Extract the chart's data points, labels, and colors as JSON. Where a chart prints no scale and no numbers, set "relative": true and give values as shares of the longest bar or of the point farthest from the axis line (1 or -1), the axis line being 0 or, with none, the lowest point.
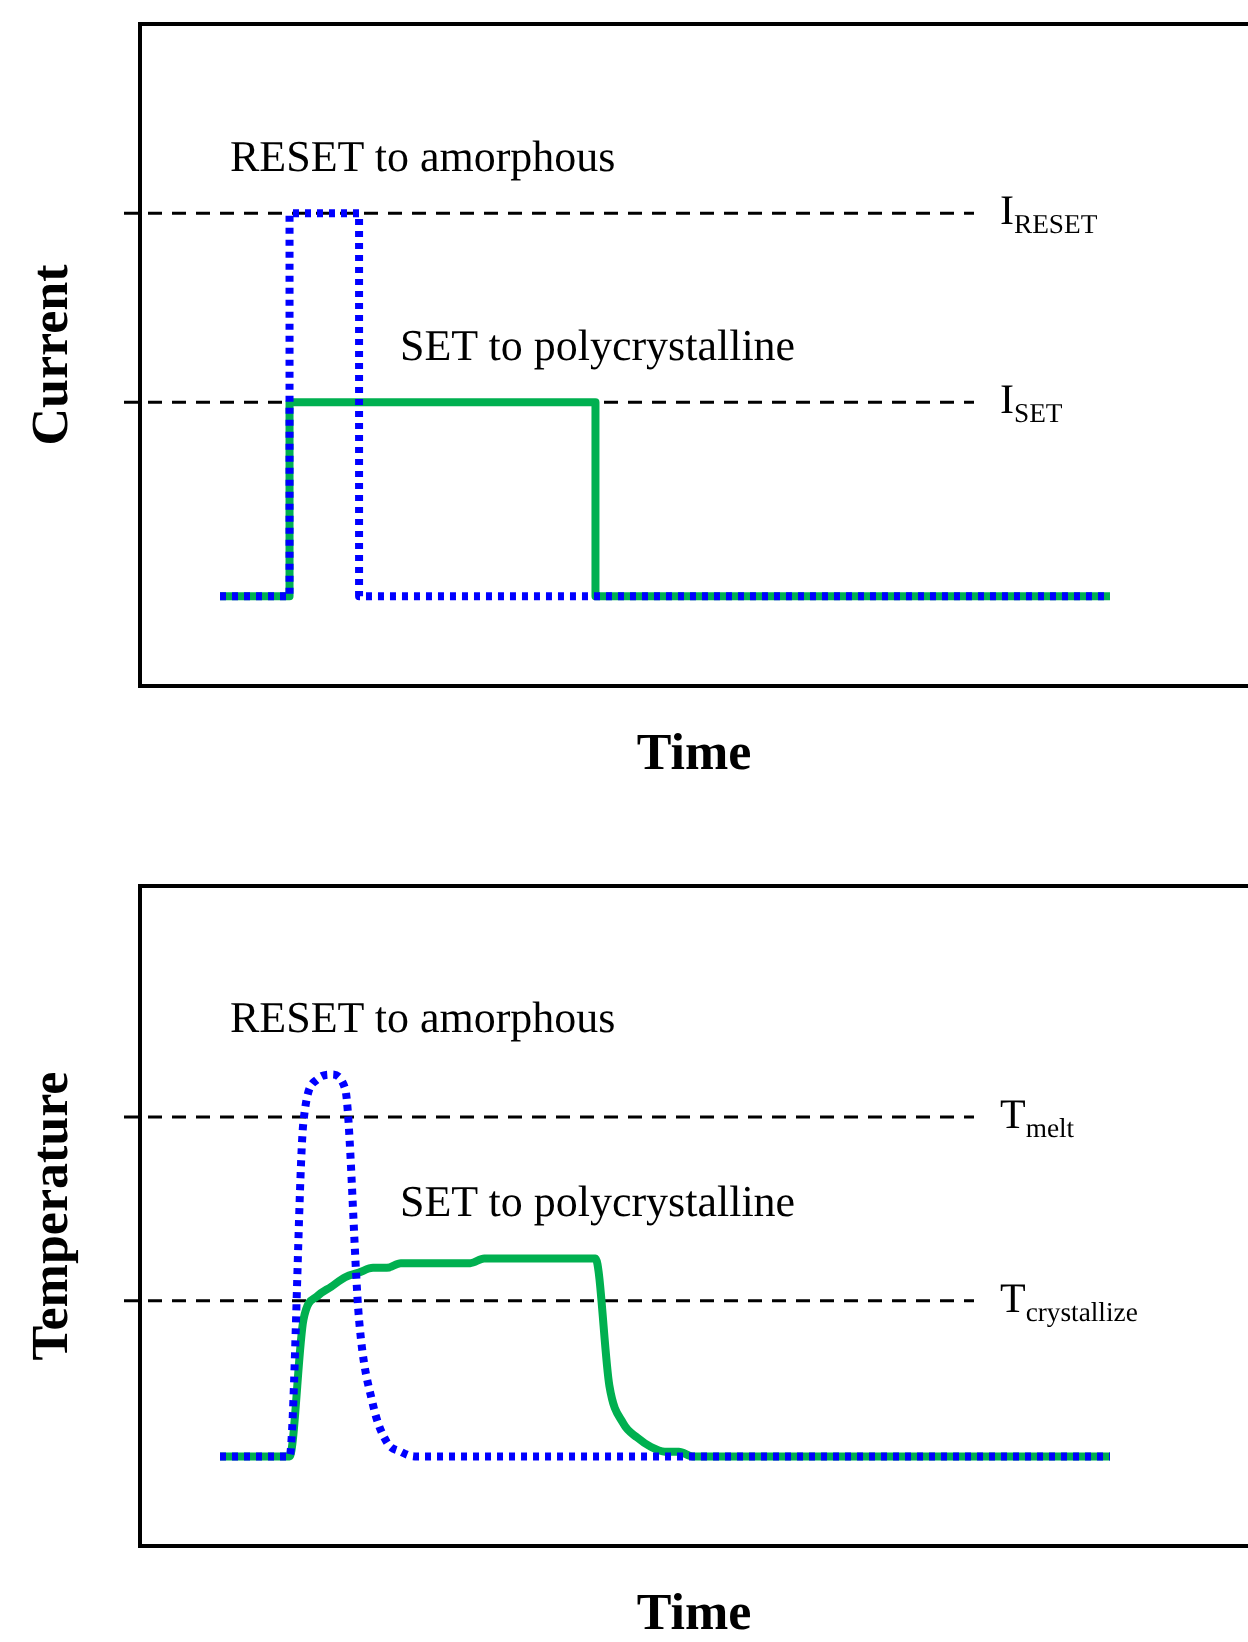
{
  "chart_data": [
    {
      "type": "step",
      "relative": true,
      "xlabel": "Time",
      "ylabel": "Current",
      "tick_labels": false,
      "categories": [
        null,
        null,
        null,
        null,
        null,
        null,
        null,
        null,
        null,
        null,
        null,
        null,
        null,
        null,
        null,
        null,
        null,
        null,
        null,
        null,
        null,
        null,
        null,
        null,
        null,
        null,
        null,
        null,
        null,
        null,
        null,
        null,
        null,
        null,
        null,
        null,
        null,
        null,
        null,
        null,
        null,
        null,
        null,
        null,
        null,
        null,
        null,
        null,
        null,
        null,
        null,
        null,
        null,
        null,
        null,
        null,
        null,
        null,
        null,
        null,
        null,
        null,
        null,
        null,
        null
      ],
      "series": [
        {
          "color": "#0000ff",
          "line_style": "dotted",
          "values": [
            0.19,
            0.19,
            0.19,
            0.19,
            0.19,
            1,
            1,
            1,
            1,
            1,
            0.19,
            0.19,
            0.19,
            0.19,
            0.19,
            0.19,
            0.19,
            0.19,
            0.19,
            0.19,
            0.19,
            0.19,
            0.19,
            0.19,
            0.19,
            0.19,
            0.19,
            0.19,
            0.19,
            0.19,
            0.19,
            0.19,
            0.19,
            0.19,
            0.19,
            0.19,
            0.19,
            0.19,
            0.19,
            0.19,
            0.19,
            0.19,
            0.19,
            0.19,
            0.19,
            0.19,
            0.19,
            0.19,
            0.19,
            0.19,
            0.19,
            0.19,
            0.19,
            0.19,
            0.19,
            0.19,
            0.19,
            0.19,
            0.19,
            0.19,
            0.19,
            0.19,
            0.19,
            0.19,
            0.19
          ]
        },
        {
          "color": "#00b050",
          "line_style": "solid",
          "values": [
            0.19,
            0.19,
            0.19,
            0.19,
            0.19,
            0.6,
            0.6,
            0.6,
            0.6,
            0.6,
            0.6,
            0.6,
            0.6,
            0.6,
            0.6,
            0.6,
            0.6,
            0.6,
            0.6,
            0.6,
            0.6,
            0.6,
            0.6,
            0.6,
            0.6,
            0.6,
            0.6,
            0.19,
            0.19,
            0.19,
            0.19,
            0.19,
            0.19,
            0.19,
            0.19,
            0.19,
            0.19,
            0.19,
            0.19,
            0.19,
            0.19,
            0.19,
            0.19,
            0.19,
            0.19,
            0.19,
            0.19,
            0.19,
            0.19,
            0.19,
            0.19,
            0.19,
            0.19,
            0.19,
            0.19,
            0.19,
            0.19,
            0.19,
            0.19,
            0.19,
            0.19,
            0.19,
            0.19,
            0.19,
            0.19
          ]
        }
      ],
      "ref_lines": [
        {
          "axis": "y",
          "value": 1,
          "label": "I$_{RESET}$",
          "color": "#000000",
          "line_style": "dashed"
        },
        {
          "axis": "y",
          "value": 0.6,
          "label": "I$_{SET}$",
          "color": "#000000",
          "line_style": "dashed"
        }
      ],
      "annotations": [
        "RESET to amorphous",
        "SET to polycrystalline"
      ]
    },
    {
      "type": "line",
      "relative": true,
      "xlabel": "Time",
      "ylabel": "Temperature",
      "tick_labels": false,
      "categories": [
        null,
        null,
        null,
        null,
        null,
        null,
        null,
        null,
        null,
        null,
        null,
        null,
        null,
        null,
        null,
        null,
        null,
        null,
        null,
        null,
        null,
        null,
        null,
        null,
        null,
        null,
        null,
        null,
        null,
        null,
        null,
        null,
        null,
        null,
        null,
        null,
        null,
        null,
        null,
        null,
        null,
        null,
        null,
        null,
        null,
        null,
        null,
        null,
        null,
        null,
        null,
        null,
        null,
        null,
        null,
        null,
        null,
        null,
        null,
        null,
        null,
        null,
        null,
        null,
        null
      ],
      "series": [
        {
          "color": "#0000ff",
          "line_style": "dotted",
          "values": [
            0.19,
            0.19,
            0.19,
            0.19,
            0.19,
            0.19,
            0.9,
            0.99,
            1,
            0.97,
            0.48,
            0.3,
            0.22,
            0.2,
            0.19,
            0.19,
            0.19,
            0.19,
            0.19,
            0.19,
            0.19,
            0.19,
            0.19,
            0.19,
            0.19,
            0.19,
            0.19,
            0.19,
            0.19,
            0.19,
            0.19,
            0.19,
            0.19,
            0.19,
            0.19,
            0.19,
            0.19,
            0.19,
            0.19,
            0.19,
            0.19,
            0.19,
            0.19,
            0.19,
            0.19,
            0.19,
            0.19,
            0.19,
            0.19,
            0.19,
            0.19,
            0.19,
            0.19,
            0.19,
            0.19,
            0.19,
            0.19,
            0.19,
            0.19,
            0.19,
            0.19,
            0.19,
            0.19,
            0.19,
            0.19
          ]
        },
        {
          "color": "#00b050",
          "line_style": "solid",
          "values": [
            0.19,
            0.19,
            0.19,
            0.19,
            0.19,
            0.19,
            0.48,
            0.53,
            0.55,
            0.57,
            0.58,
            0.59,
            0.59,
            0.6,
            0.6,
            0.6,
            0.6,
            0.6,
            0.6,
            0.61,
            0.61,
            0.61,
            0.61,
            0.61,
            0.61,
            0.61,
            0.61,
            0.61,
            0.34,
            0.26,
            0.23,
            0.21,
            0.2,
            0.2,
            0.19,
            0.19,
            0.19,
            0.19,
            0.19,
            0.19,
            0.19,
            0.19,
            0.19,
            0.19,
            0.19,
            0.19,
            0.19,
            0.19,
            0.19,
            0.19,
            0.19,
            0.19,
            0.19,
            0.19,
            0.19,
            0.19,
            0.19,
            0.19,
            0.19,
            0.19,
            0.19,
            0.19,
            0.19,
            0.19,
            0.19
          ]
        }
      ],
      "ref_lines": [
        {
          "axis": "y",
          "value": 0.91,
          "label": "T$_{melt}$",
          "color": "#000000",
          "line_style": "dashed"
        },
        {
          "axis": "y",
          "value": 0.52,
          "label": "T$_{crystallize}$",
          "color": "#000000",
          "line_style": "dashed"
        }
      ],
      "annotations": [
        "RESET to amorphous",
        "SET to polycrystalline"
      ]
    }
  ]
}
